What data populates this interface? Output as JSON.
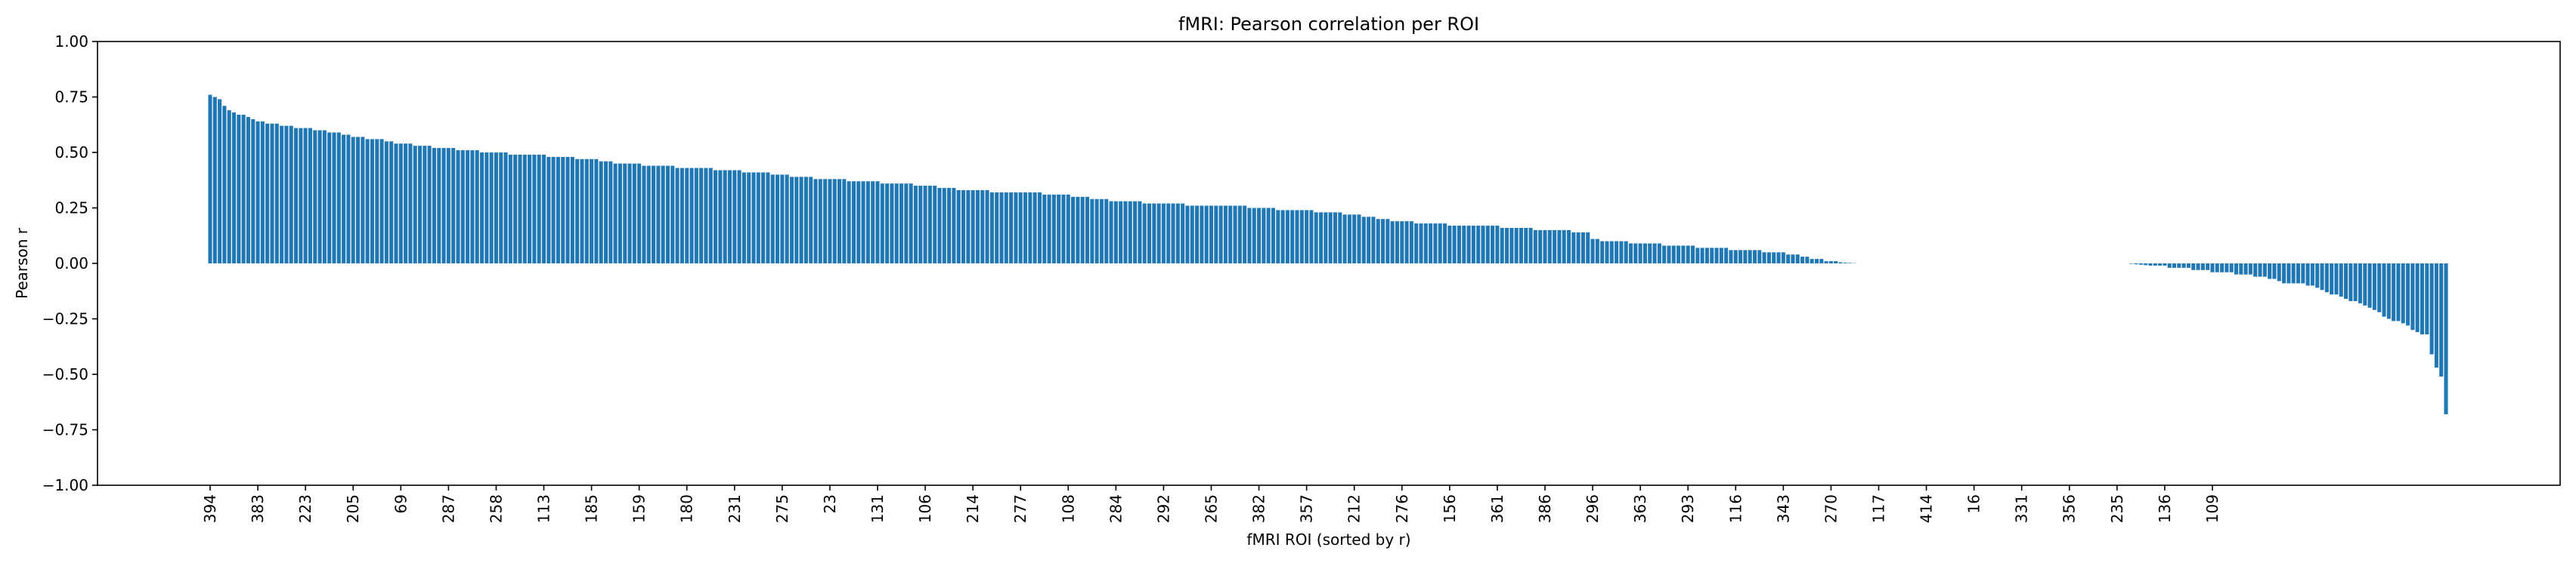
{
  "chart_data": {
    "type": "bar",
    "title": "fMRI: Pearson correlation per ROI",
    "xlabel": "fMRI ROI (sorted by r)",
    "ylabel": "Pearson r",
    "ylim": [
      -1.0,
      1.0
    ],
    "yticks": [
      -1.0,
      -0.75,
      -0.5,
      -0.25,
      0.0,
      0.25,
      0.5,
      0.75,
      1.0
    ],
    "ytick_labels": [
      "−1.00",
      "−0.75",
      "−0.50",
      "−0.25",
      "0.00",
      "0.25",
      "0.50",
      "0.75",
      "1.00"
    ],
    "xtick_labels": [
      "394",
      "383",
      "223",
      "205",
      "69",
      "287",
      "258",
      "113",
      "185",
      "159",
      "180",
      "231",
      "275",
      "23",
      "131",
      "106",
      "214",
      "277",
      "108",
      "284",
      "292",
      "265",
      "382",
      "357",
      "212",
      "276",
      "156",
      "361",
      "386",
      "296",
      "363",
      "293",
      "116",
      "343",
      "270",
      "117",
      "414",
      "16",
      "331",
      "356",
      "235",
      "136",
      "109"
    ],
    "tick_every": 10,
    "n_bars": 425,
    "color": "#1f77b4",
    "grid": false,
    "legend": "none",
    "values": [
      0.76,
      0.75,
      0.74,
      0.71,
      0.69,
      0.68,
      0.67,
      0.67,
      0.66,
      0.65,
      0.64,
      0.64,
      0.63,
      0.63,
      0.63,
      0.62,
      0.62,
      0.62,
      0.61,
      0.61,
      0.61,
      0.61,
      0.6,
      0.6,
      0.6,
      0.59,
      0.59,
      0.59,
      0.58,
      0.58,
      0.57,
      0.57,
      0.57,
      0.56,
      0.56,
      0.56,
      0.56,
      0.55,
      0.55,
      0.54,
      0.54,
      0.54,
      0.54,
      0.53,
      0.53,
      0.53,
      0.53,
      0.52,
      0.52,
      0.52,
      0.52,
      0.52,
      0.51,
      0.51,
      0.51,
      0.51,
      0.51,
      0.5,
      0.5,
      0.5,
      0.5,
      0.5,
      0.5,
      0.49,
      0.49,
      0.49,
      0.49,
      0.49,
      0.49,
      0.49,
      0.49,
      0.48,
      0.48,
      0.48,
      0.48,
      0.48,
      0.48,
      0.47,
      0.47,
      0.47,
      0.47,
      0.47,
      0.46,
      0.46,
      0.46,
      0.45,
      0.45,
      0.45,
      0.45,
      0.45,
      0.45,
      0.44,
      0.44,
      0.44,
      0.44,
      0.44,
      0.44,
      0.44,
      0.43,
      0.43,
      0.43,
      0.43,
      0.43,
      0.43,
      0.43,
      0.43,
      0.42,
      0.42,
      0.42,
      0.42,
      0.42,
      0.42,
      0.41,
      0.41,
      0.41,
      0.41,
      0.41,
      0.41,
      0.4,
      0.4,
      0.4,
      0.4,
      0.39,
      0.39,
      0.39,
      0.39,
      0.39,
      0.38,
      0.38,
      0.38,
      0.38,
      0.38,
      0.38,
      0.38,
      0.37,
      0.37,
      0.37,
      0.37,
      0.37,
      0.37,
      0.37,
      0.36,
      0.36,
      0.36,
      0.36,
      0.36,
      0.36,
      0.36,
      0.35,
      0.35,
      0.35,
      0.35,
      0.35,
      0.34,
      0.34,
      0.34,
      0.34,
      0.33,
      0.33,
      0.33,
      0.33,
      0.33,
      0.33,
      0.33,
      0.32,
      0.32,
      0.32,
      0.32,
      0.32,
      0.32,
      0.32,
      0.32,
      0.32,
      0.32,
      0.32,
      0.31,
      0.31,
      0.31,
      0.31,
      0.31,
      0.31,
      0.3,
      0.3,
      0.3,
      0.3,
      0.29,
      0.29,
      0.29,
      0.29,
      0.28,
      0.28,
      0.28,
      0.28,
      0.28,
      0.28,
      0.28,
      0.27,
      0.27,
      0.27,
      0.27,
      0.27,
      0.27,
      0.27,
      0.27,
      0.27,
      0.26,
      0.26,
      0.26,
      0.26,
      0.26,
      0.26,
      0.26,
      0.26,
      0.26,
      0.26,
      0.26,
      0.26,
      0.26,
      0.25,
      0.25,
      0.25,
      0.25,
      0.25,
      0.25,
      0.24,
      0.24,
      0.24,
      0.24,
      0.24,
      0.24,
      0.24,
      0.24,
      0.23,
      0.23,
      0.23,
      0.23,
      0.23,
      0.23,
      0.22,
      0.22,
      0.22,
      0.22,
      0.21,
      0.21,
      0.21,
      0.2,
      0.2,
      0.2,
      0.19,
      0.19,
      0.19,
      0.19,
      0.19,
      0.18,
      0.18,
      0.18,
      0.18,
      0.18,
      0.18,
      0.18,
      0.17,
      0.17,
      0.17,
      0.17,
      0.17,
      0.17,
      0.17,
      0.17,
      0.17,
      0.17,
      0.17,
      0.16,
      0.16,
      0.16,
      0.16,
      0.16,
      0.16,
      0.16,
      0.15,
      0.15,
      0.15,
      0.15,
      0.15,
      0.15,
      0.15,
      0.15,
      0.14,
      0.14,
      0.14,
      0.14,
      0.11,
      0.11,
      0.1,
      0.1,
      0.1,
      0.1,
      0.1,
      0.1,
      0.09,
      0.09,
      0.09,
      0.09,
      0.09,
      0.09,
      0.09,
      0.08,
      0.08,
      0.08,
      0.08,
      0.08,
      0.08,
      0.08,
      0.07,
      0.07,
      0.07,
      0.07,
      0.07,
      0.07,
      0.07,
      0.06,
      0.06,
      0.06,
      0.06,
      0.06,
      0.06,
      0.06,
      0.05,
      0.05,
      0.05,
      0.05,
      0.05,
      0.04,
      0.04,
      0.04,
      0.03,
      0.03,
      0.02,
      0.02,
      0.02,
      0.01,
      0.01,
      0.01,
      0.005,
      0.003,
      0.002,
      0.001,
      0.0,
      0.0,
      0.0,
      0.0,
      0.0,
      0.0,
      0.0,
      0.0,
      0.0,
      0.0,
      0.0,
      0.0,
      0.0,
      0.0,
      0.0,
      0.0,
      0.0,
      0.0,
      0.0,
      0.0,
      0.0,
      0.0,
      0.0,
      0.0,
      0.0,
      0.0,
      0.0,
      0.0,
      0.0,
      0.0,
      0.0,
      0.0,
      0.0,
      0.0,
      0.0,
      0.0,
      0.0,
      0.0,
      0.0,
      0.0,
      0.0,
      0.0,
      0.0,
      0.0,
      0.0,
      0.0,
      0.0,
      0.0,
      0.0,
      0.0,
      0.0,
      0.0,
      0.0,
      0.0,
      0.0,
      0.0,
      0.0,
      -0.002,
      -0.004,
      -0.006,
      -0.008,
      -0.01,
      -0.01,
      -0.01,
      -0.01,
      -0.02,
      -0.02,
      -0.02,
      -0.02,
      -0.02,
      -0.03,
      -0.03,
      -0.03,
      -0.03,
      -0.04,
      -0.04,
      -0.04,
      -0.04,
      -0.04,
      -0.05,
      -0.05,
      -0.05,
      -0.05,
      -0.06,
      -0.06,
      -0.06,
      -0.07,
      -0.07,
      -0.08,
      -0.09,
      -0.09,
      -0.09,
      -0.09,
      -0.09,
      -0.1,
      -0.1,
      -0.11,
      -0.12,
      -0.13,
      -0.14,
      -0.14,
      -0.15,
      -0.16,
      -0.17,
      -0.17,
      -0.18,
      -0.19,
      -0.2,
      -0.21,
      -0.22,
      -0.24,
      -0.25,
      -0.26,
      -0.26,
      -0.27,
      -0.28,
      -0.3,
      -0.31,
      -0.32,
      -0.32,
      -0.41,
      -0.47,
      -0.51,
      -0.68
    ]
  }
}
